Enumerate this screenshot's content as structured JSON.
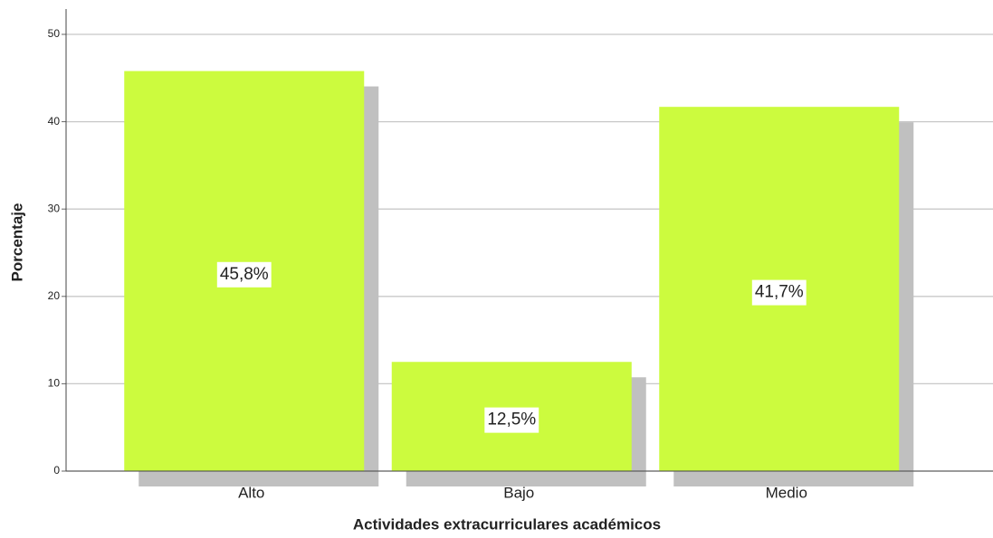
{
  "chart_data": {
    "type": "bar",
    "x_label": "Actividades extracurriculares académicos",
    "y_label": "Porcentaje",
    "categories": [
      "Alto",
      "Bajo",
      "Medio"
    ],
    "values": [
      45.8,
      12.5,
      41.7
    ],
    "value_labels": [
      "45,8%",
      "12,5%",
      "41,7%"
    ],
    "color": "#ccfb3e",
    "ylim": [
      0,
      50
    ],
    "yticks": [
      0,
      10,
      20,
      30,
      40,
      50
    ],
    "grid": true
  }
}
